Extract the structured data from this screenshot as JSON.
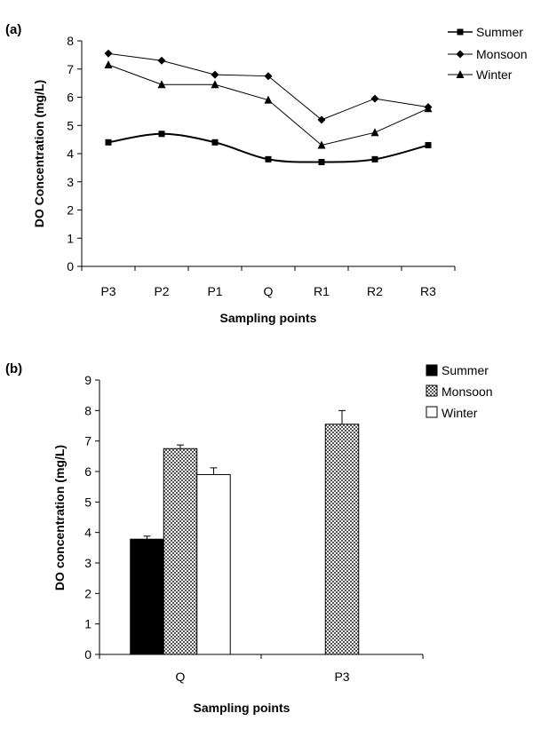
{
  "chart_data": [
    {
      "panel_label": "(a)",
      "type": "line",
      "categories": [
        "P3",
        "P2",
        "P1",
        "Q",
        "R1",
        "R2",
        "R3"
      ],
      "series": [
        {
          "name": "Summer",
          "marker": "square",
          "smooth": true,
          "values": [
            4.4,
            4.7,
            4.4,
            3.8,
            3.7,
            3.8,
            4.3
          ]
        },
        {
          "name": "Monsoon",
          "marker": "diamond",
          "smooth": false,
          "values": [
            7.55,
            7.3,
            6.8,
            6.75,
            5.2,
            5.95,
            5.65
          ]
        },
        {
          "name": "Winter",
          "marker": "triangle",
          "smooth": false,
          "values": [
            7.15,
            6.45,
            6.45,
            5.9,
            4.3,
            4.75,
            5.6
          ]
        }
      ],
      "xlabel": "Sampling points",
      "ylabel": "DO Concentration (mg/L)",
      "ylim": [
        0,
        8
      ],
      "yticks": [
        "0",
        "1",
        "2",
        "3",
        "4",
        "5",
        "6",
        "7",
        "8"
      ],
      "grid": false,
      "legend_position": "top-right"
    },
    {
      "panel_label": "(b)",
      "type": "bar",
      "categories": [
        "Q",
        "P3"
      ],
      "series": [
        {
          "name": "Summer",
          "fill": "#000000",
          "values": [
            3.78,
            null
          ],
          "errors": [
            0.1,
            null
          ]
        },
        {
          "name": "Monsoon",
          "fill": "pattern",
          "values": [
            6.75,
            7.55
          ],
          "errors": [
            0.12,
            0.45
          ]
        },
        {
          "name": "Winter",
          "fill": "#ffffff",
          "values": [
            5.9,
            null
          ],
          "errors": [
            0.22,
            null
          ]
        }
      ],
      "xlabel": "Sampling points",
      "ylabel": "DO concentration (mg/L)",
      "ylim": [
        0,
        9
      ],
      "yticks": [
        "0",
        "1",
        "2",
        "3",
        "4",
        "5",
        "6",
        "7",
        "8",
        "9"
      ],
      "grid": false,
      "legend_position": "top-right"
    }
  ]
}
